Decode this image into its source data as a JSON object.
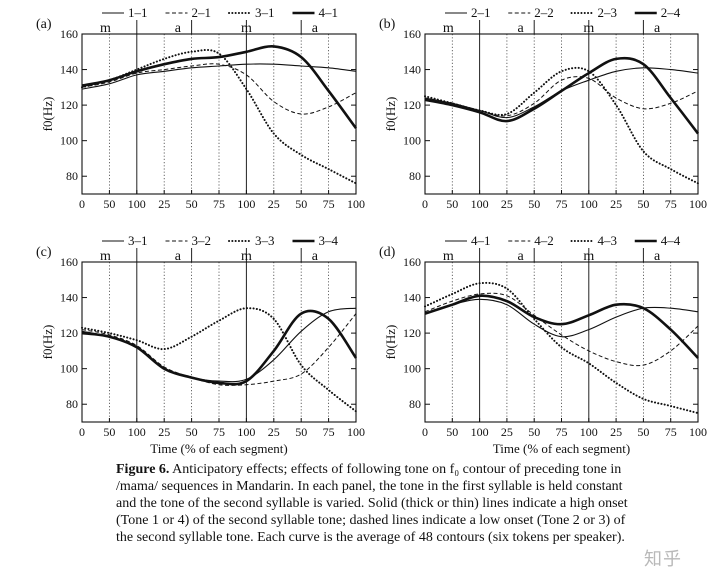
{
  "chart_data": [
    {
      "panel_label": "(a)",
      "type": "line",
      "ylabel": "f0(Hz)",
      "xlabel": "",
      "ylim": [
        70,
        160
      ],
      "yticks": [
        80,
        100,
        120,
        140,
        160
      ],
      "xticks": [
        "0",
        "50",
        "100",
        "25",
        "50",
        "75",
        "100",
        "25",
        "50",
        "75",
        "100"
      ],
      "syllables": [
        "m",
        "a",
        "m",
        "a"
      ],
      "series": [
        {
          "name": "1–1",
          "style": "thin",
          "x": [
            0,
            10,
            20,
            30,
            40,
            50,
            60,
            70,
            80,
            90,
            100
          ],
          "y": [
            129,
            132,
            137,
            139,
            141,
            142,
            143,
            143,
            142,
            141,
            139
          ]
        },
        {
          "name": "2–1",
          "style": "dashed",
          "x": [
            0,
            10,
            20,
            30,
            40,
            50,
            60,
            70,
            80,
            90,
            100
          ],
          "y": [
            130,
            133,
            138,
            140,
            142,
            143,
            137,
            122,
            115,
            119,
            127
          ]
        },
        {
          "name": "3–1",
          "style": "dotted",
          "x": [
            0,
            10,
            20,
            30,
            40,
            50,
            60,
            70,
            80,
            90,
            100
          ],
          "y": [
            130,
            134,
            140,
            146,
            150,
            149,
            129,
            104,
            92,
            84,
            76
          ]
        },
        {
          "name": "4–1",
          "style": "thick",
          "x": [
            0,
            10,
            20,
            30,
            40,
            50,
            60,
            70,
            80,
            90,
            100
          ],
          "y": [
            131,
            134,
            139,
            143,
            146,
            147,
            150,
            153,
            147,
            128,
            107
          ]
        }
      ]
    },
    {
      "panel_label": "(b)",
      "type": "line",
      "ylabel": "f0(Hz)",
      "xlabel": "",
      "ylim": [
        70,
        160
      ],
      "yticks": [
        80,
        100,
        120,
        140,
        160
      ],
      "xticks": [
        "0",
        "50",
        "100",
        "25",
        "50",
        "75",
        "100",
        "25",
        "50",
        "75",
        "100"
      ],
      "syllables": [
        "m",
        "a",
        "m",
        "a"
      ],
      "series": [
        {
          "name": "2–1",
          "style": "thin",
          "x": [
            0,
            10,
            20,
            30,
            40,
            50,
            60,
            70,
            80,
            90,
            100
          ],
          "y": [
            124,
            121,
            117,
            113,
            119,
            128,
            134,
            139,
            141,
            140,
            138
          ]
        },
        {
          "name": "2–2",
          "style": "dashed",
          "x": [
            0,
            10,
            20,
            30,
            40,
            50,
            60,
            70,
            80,
            90,
            100
          ],
          "y": [
            124,
            121,
            117,
            114,
            121,
            134,
            135,
            124,
            118,
            121,
            128
          ]
        },
        {
          "name": "2–3",
          "style": "dotted",
          "x": [
            0,
            10,
            20,
            30,
            40,
            50,
            60,
            70,
            80,
            90,
            100
          ],
          "y": [
            125,
            121,
            117,
            115,
            127,
            139,
            139,
            120,
            94,
            84,
            76
          ]
        },
        {
          "name": "2–4",
          "style": "thick",
          "x": [
            0,
            10,
            20,
            30,
            40,
            50,
            60,
            70,
            80,
            90,
            100
          ],
          "y": [
            123,
            120,
            116,
            111,
            118,
            128,
            138,
            146,
            143,
            124,
            104
          ]
        }
      ]
    },
    {
      "panel_label": "(c)",
      "type": "line",
      "ylabel": "f0(Hz)",
      "xlabel": "Time (% of each segment)",
      "ylim": [
        70,
        160
      ],
      "yticks": [
        80,
        100,
        120,
        140,
        160
      ],
      "xticks": [
        "0",
        "50",
        "100",
        "25",
        "50",
        "75",
        "100",
        "25",
        "50",
        "75",
        "100"
      ],
      "syllables": [
        "m",
        "a",
        "m",
        "a"
      ],
      "series": [
        {
          "name": "3–1",
          "style": "thin",
          "x": [
            0,
            10,
            20,
            30,
            40,
            50,
            60,
            70,
            80,
            90,
            100
          ],
          "y": [
            121,
            118,
            112,
            100,
            95,
            93,
            94,
            105,
            121,
            132,
            134
          ]
        },
        {
          "name": "3–2",
          "style": "dashed",
          "x": [
            0,
            10,
            20,
            30,
            40,
            50,
            60,
            70,
            80,
            90,
            100
          ],
          "y": [
            122,
            119,
            113,
            101,
            95,
            91,
            91,
            93,
            97,
            112,
            131
          ]
        },
        {
          "name": "3–3",
          "style": "dotted",
          "x": [
            0,
            10,
            20,
            30,
            40,
            50,
            60,
            70,
            80,
            90,
            100
          ],
          "y": [
            123,
            120,
            116,
            111,
            118,
            127,
            134,
            128,
            102,
            88,
            76
          ]
        },
        {
          "name": "3–4",
          "style": "thick",
          "x": [
            0,
            10,
            20,
            30,
            40,
            50,
            60,
            70,
            80,
            90,
            100
          ],
          "y": [
            120,
            118,
            112,
            100,
            95,
            92,
            93,
            110,
            131,
            128,
            106
          ]
        }
      ]
    },
    {
      "panel_label": "(d)",
      "type": "line",
      "ylabel": "f0(Hz)",
      "xlabel": "Time (% of each segment)",
      "ylim": [
        70,
        160
      ],
      "yticks": [
        80,
        100,
        120,
        140,
        160
      ],
      "xticks": [
        "0",
        "50",
        "100",
        "25",
        "50",
        "75",
        "100",
        "25",
        "50",
        "75",
        "100"
      ],
      "syllables": [
        "m",
        "a",
        "m",
        "a"
      ],
      "series": [
        {
          "name": "4–1",
          "style": "thin",
          "x": [
            0,
            10,
            20,
            30,
            40,
            50,
            60,
            70,
            80,
            90,
            100
          ],
          "y": [
            131,
            136,
            139,
            136,
            125,
            118,
            122,
            129,
            134,
            134,
            132
          ]
        },
        {
          "name": "4–2",
          "style": "dashed",
          "x": [
            0,
            10,
            20,
            30,
            40,
            50,
            60,
            70,
            80,
            90,
            100
          ],
          "y": [
            132,
            138,
            142,
            141,
            130,
            119,
            110,
            104,
            102,
            110,
            124
          ]
        },
        {
          "name": "4–3",
          "style": "dotted",
          "x": [
            0,
            10,
            20,
            30,
            40,
            50,
            60,
            70,
            80,
            90,
            100
          ],
          "y": [
            135,
            142,
            148,
            145,
            128,
            112,
            103,
            92,
            83,
            79,
            75
          ]
        },
        {
          "name": "4–4",
          "style": "thick",
          "x": [
            0,
            10,
            20,
            30,
            40,
            50,
            60,
            70,
            80,
            90,
            100
          ],
          "y": [
            131,
            136,
            141,
            138,
            129,
            125,
            130,
            136,
            134,
            122,
            106
          ]
        }
      ]
    }
  ],
  "caption": {
    "label": "Figure 6.",
    "text": " Anticipatory effects; effects of following tone on f₀ contour of preceding tone in /mama/ sequences in Mandarin. In each panel, the tone in the first syllable is held constant and the tone of the second syllable is varied. Solid (thick or thin) lines indicate a high onset (Tone 1 or 4) of the second syllable tone; dashed lines indicate a low onset (Tone 2 or 3) of the second syllable tone. Each curve is the average of 48 contours (six tokens per speaker)."
  },
  "watermark": "知乎"
}
